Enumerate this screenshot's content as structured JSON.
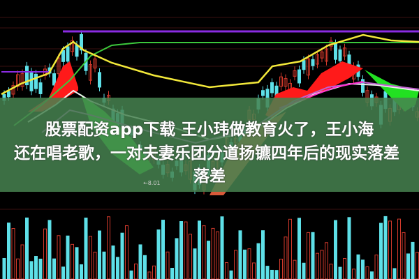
{
  "headline": {
    "line1": "股票配资app下载 王小玮做教育火了，王小海",
    "line2": "还在唱老歌，一对夫妻乐团分道扬镳四年后的现实落差",
    "line3": "落差"
  },
  "chart_data": {
    "type": "candlestick",
    "title": "",
    "annotations": [
      "←8.01"
    ],
    "grid": true,
    "colors": {
      "up": "#d33a2c",
      "down": "#5ee0e8",
      "ma_yellow": "#f2e83a",
      "ma_green": "#3cc83c",
      "ma_white": "#f0f0f0",
      "ma_purple": "#b060d0",
      "level_line": "#8a2be2",
      "ribbon_red": "#ff1a1a",
      "ribbon_green": "#22e022",
      "overlay": "#46824f"
    }
  }
}
